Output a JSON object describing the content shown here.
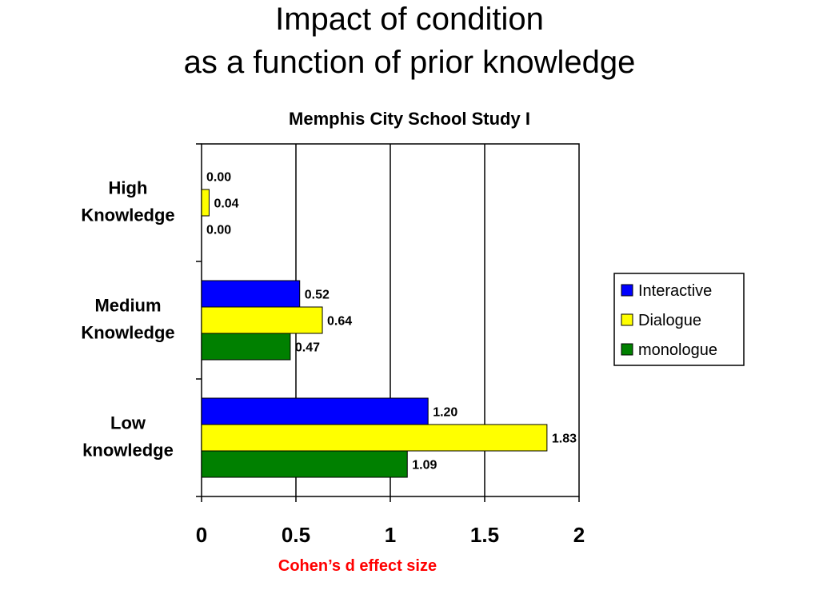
{
  "slide": {
    "title_line1": "Impact of condition",
    "title_line2": "as a function of prior knowledge"
  },
  "chart_data": {
    "type": "bar",
    "orientation": "horizontal",
    "title": "Memphis City School Study I",
    "xlabel": "Cohen’s d effect size",
    "ylabel": "",
    "xlim": [
      0,
      2
    ],
    "x_ticks": [
      "0",
      "0.5",
      "1",
      "1.5",
      "2"
    ],
    "grid": true,
    "legend_position": "right",
    "categories": [
      [
        "High",
        "Knowledge"
      ],
      [
        "Medium",
        "Knowledge"
      ],
      [
        "Low",
        "knowledge"
      ]
    ],
    "series": [
      {
        "name": "Interactive",
        "color": "#0000ff",
        "values": [
          0.0,
          0.52,
          1.2
        ],
        "labels": [
          "0.00",
          "0.52",
          "1.20"
        ]
      },
      {
        "name": "Dialogue",
        "color": "#ffff00",
        "values": [
          0.04,
          0.64,
          1.83
        ],
        "labels": [
          "0.04",
          "0.64",
          "1.83"
        ]
      },
      {
        "name": "monologue",
        "color": "#008000",
        "values": [
          0.0,
          0.47,
          1.09
        ],
        "labels": [
          "0.00",
          "0.47",
          "1.09"
        ]
      }
    ],
    "xlabel_color": "#ff0000"
  }
}
